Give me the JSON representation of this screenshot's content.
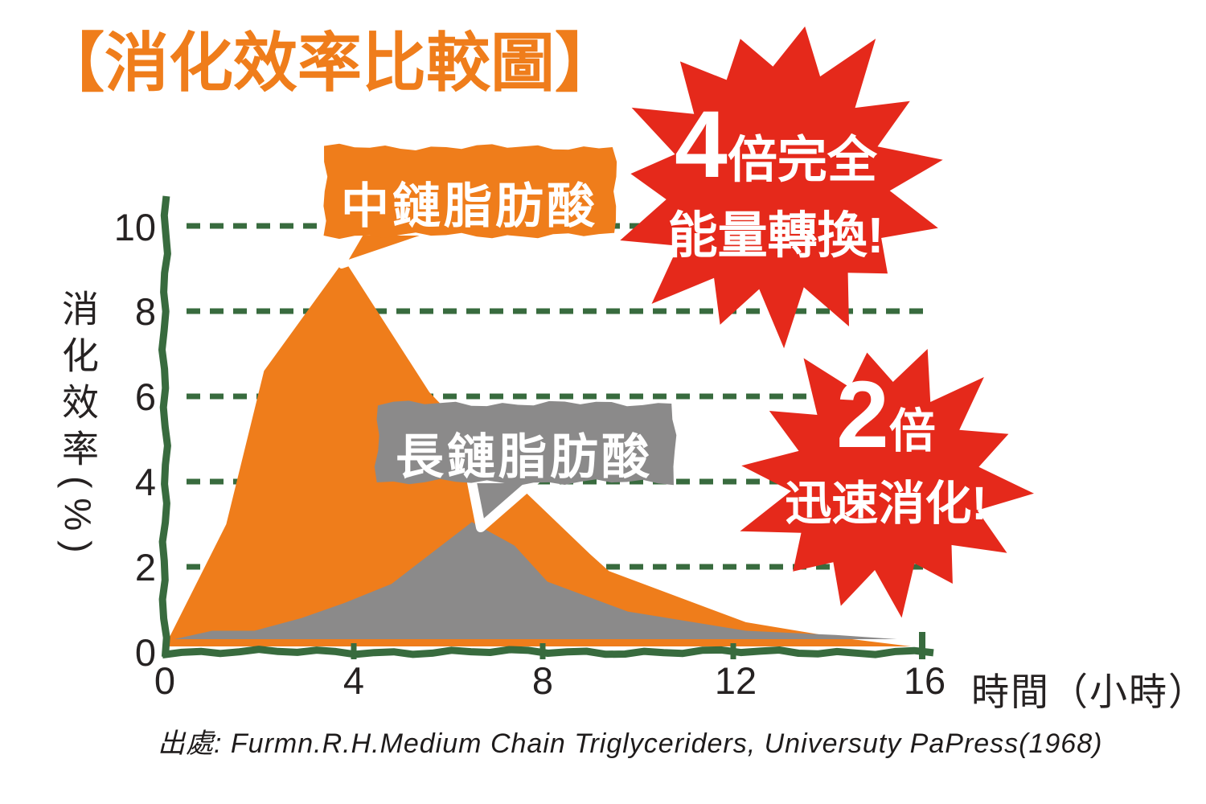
{
  "title": "【消化效率比較圖】",
  "colors": {
    "orange": "#ef7d1b",
    "gray": "#8b8a8a",
    "red": "#e5291b",
    "green": "#386b3e",
    "ink": "#262222",
    "white": "#ffffff"
  },
  "axes": {
    "y_label": "消化效率(%)",
    "x_label": "時間（小時）",
    "y_ticks": [
      "10",
      "8",
      "6",
      "4",
      "2",
      "0"
    ],
    "x_ticks": [
      "0",
      "4",
      "8",
      "12",
      "16"
    ]
  },
  "callouts": {
    "mcfa": "中鏈脂肪酸",
    "lcfa": "長鏈脂肪酸"
  },
  "badges": {
    "b1": {
      "big": "4",
      "small": "倍完全",
      "line2": "能量轉換!"
    },
    "b2": {
      "big": "2",
      "small": "倍",
      "line2": "迅速消化!"
    }
  },
  "source": "出處: Furmn.R.H.Medium Chain Triglyceriders, Universuty PaPress(1968)",
  "chart_data": {
    "type": "area",
    "title": "消化效率比較圖",
    "xlabel": "時間（小時）",
    "ylabel": "消化效率(%)",
    "xlim": [
      0,
      16.3
    ],
    "ylim": [
      0,
      10.7
    ],
    "x_ticks": [
      0,
      4,
      8,
      12,
      16
    ],
    "y_ticks": [
      0,
      2,
      4,
      6,
      8,
      10
    ],
    "grid": "horizontal-dashed-green",
    "legend_position": "callouts-on-plot",
    "series": [
      {
        "name": "中鏈脂肪酸",
        "color": "#ef7d1b",
        "points": [
          [
            0,
            0
          ],
          [
            1.3,
            3.0
          ],
          [
            2.1,
            6.6
          ],
          [
            3.8,
            9.2
          ],
          [
            5.6,
            6.1
          ],
          [
            7.4,
            4.0
          ],
          [
            9.0,
            2.3
          ],
          [
            9.4,
            1.9
          ],
          [
            12.3,
            0.7
          ],
          [
            14.2,
            0.35
          ],
          [
            15.8,
            0.08
          ]
        ]
      },
      {
        "name": "長鏈脂肪酸",
        "color": "#8b8a8a",
        "points": [
          [
            0.2,
            0
          ],
          [
            1.0,
            0.5
          ],
          [
            1.9,
            0.5
          ],
          [
            2.9,
            0.8
          ],
          [
            3.8,
            1.15
          ],
          [
            4.8,
            1.6
          ],
          [
            6.5,
            3.05
          ],
          [
            7.4,
            2.5
          ],
          [
            8.1,
            1.65
          ],
          [
            9.8,
            0.95
          ],
          [
            12.3,
            0.5
          ],
          [
            14.2,
            0.4
          ],
          [
            15.5,
            0.3
          ]
        ]
      }
    ],
    "annotations": [
      "4倍完全能量轉換!",
      "2倍迅速消化!"
    ]
  }
}
